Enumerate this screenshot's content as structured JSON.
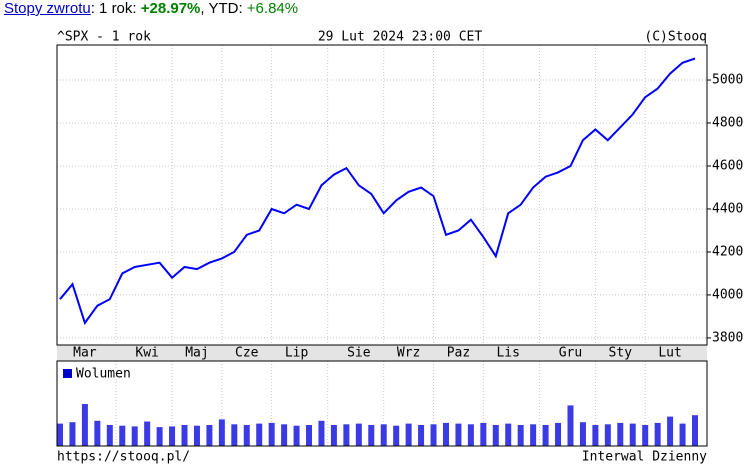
{
  "header": {
    "link": "Stopy zwrotu",
    "label_1y": ": 1 rok: ",
    "return_1y": "+28.97%",
    "label_ytd": ", YTD: ",
    "return_ytd": "+6.84%"
  },
  "chart_data": {
    "type": "line",
    "title": "^SPX - 1 rok",
    "date": "29 Lut 2024 23:00 CET",
    "source": "(C)Stooq",
    "footer_left": "https://stooq.pl/",
    "footer_right": "Interwal Dzienny",
    "categories": [
      null,
      null,
      "Mar",
      null,
      null,
      null,
      null,
      "Kwi",
      null,
      null,
      null,
      "Maj",
      null,
      null,
      null,
      "Cze",
      null,
      null,
      null,
      "Lip",
      null,
      null,
      null,
      null,
      "Sie",
      null,
      null,
      null,
      "Wrz",
      null,
      null,
      null,
      "Paz",
      null,
      null,
      null,
      "Lis",
      null,
      null,
      null,
      null,
      "Gru",
      null,
      null,
      null,
      "Sty",
      null,
      null,
      null,
      "Lut",
      null,
      null
    ],
    "series": [
      {
        "name": "^SPX",
        "color": "#0000ff",
        "values": [
          3980,
          4050,
          3870,
          3950,
          3980,
          4100,
          4130,
          4140,
          4150,
          4080,
          4130,
          4120,
          4150,
          4170,
          4200,
          4280,
          4300,
          4400,
          4380,
          4420,
          4400,
          4510,
          4560,
          4590,
          4510,
          4470,
          4380,
          4440,
          4480,
          4500,
          4460,
          4280,
          4300,
          4350,
          4270,
          4180,
          4380,
          4420,
          4500,
          4550,
          4570,
          4600,
          4720,
          4770,
          4720,
          4780,
          4840,
          4920,
          4960,
          5030,
          5080,
          5100
        ]
      }
    ],
    "ylim": [
      3767,
      5163
    ],
    "yticks": [
      3800,
      4000,
      4200,
      4400,
      4600,
      4800,
      5000
    ],
    "grid": true,
    "volume": {
      "name": "Wolumen",
      "color": "#3b3be6",
      "ylim": [
        0,
        100
      ],
      "values": [
        32,
        34,
        60,
        36,
        30,
        29,
        28,
        35,
        27,
        28,
        30,
        29,
        30,
        38,
        31,
        30,
        32,
        33,
        31,
        29,
        30,
        36,
        30,
        31,
        32,
        30,
        31,
        29,
        32,
        30,
        31,
        33,
        32,
        31,
        33,
        30,
        32,
        30,
        31,
        30,
        33,
        58,
        34,
        30,
        31,
        33,
        32,
        30,
        33,
        42,
        32,
        44
      ]
    }
  }
}
